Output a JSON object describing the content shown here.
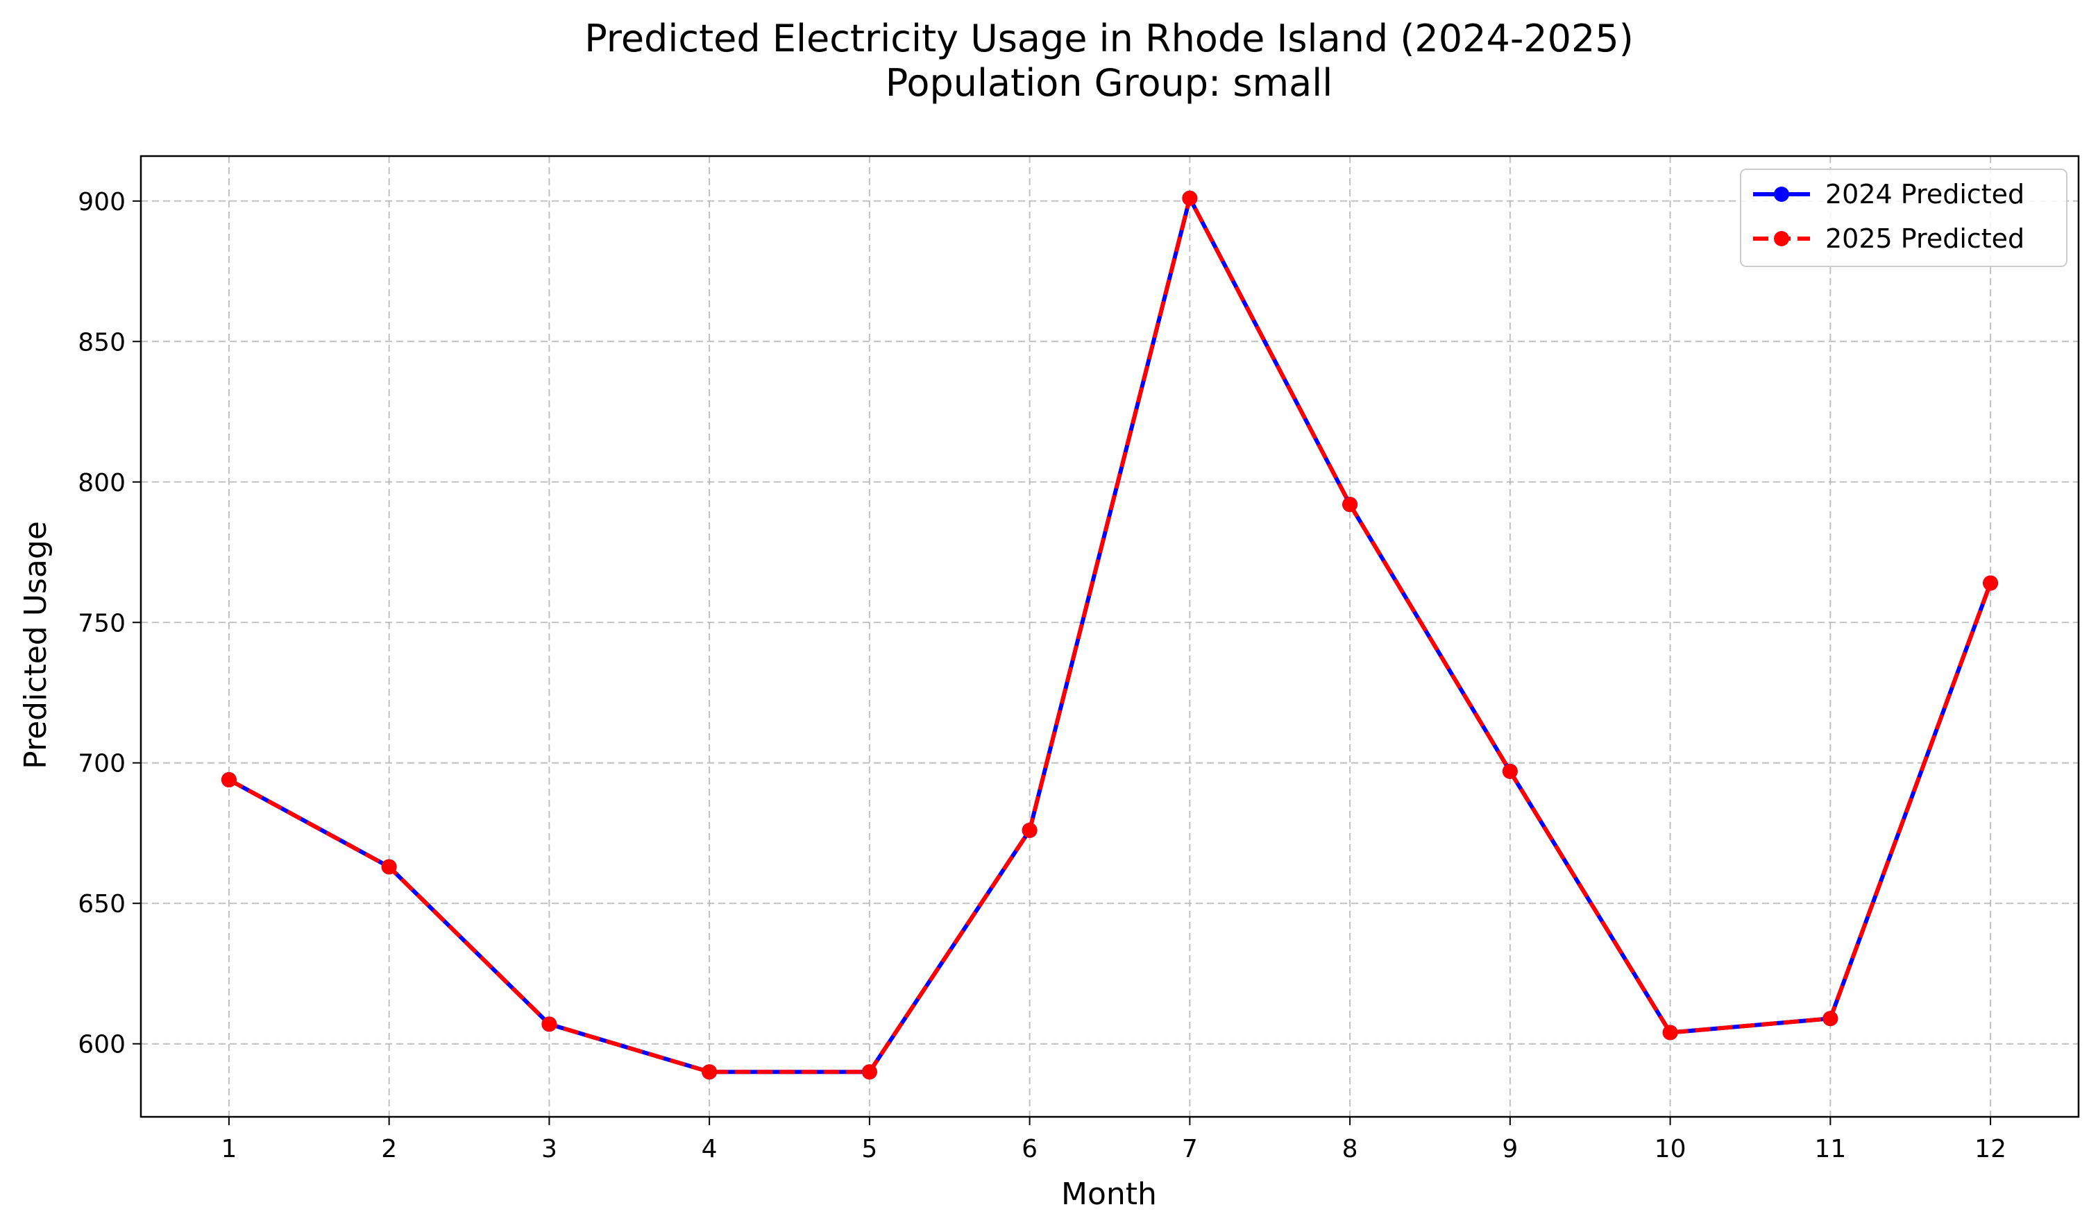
{
  "chart_data": {
    "type": "line",
    "title": "Predicted Electricity Usage in Rhode Island (2024-2025)",
    "subtitle": "Population Group: small",
    "xlabel": "Month",
    "ylabel": "Predicted Usage",
    "x": [
      1,
      2,
      3,
      4,
      5,
      6,
      7,
      8,
      9,
      10,
      11,
      12
    ],
    "xlim": [
      0.45,
      12.55
    ],
    "ylim": [
      574,
      916
    ],
    "yticks": [
      600,
      650,
      700,
      750,
      800,
      850,
      900
    ],
    "grid": true,
    "legend_position": "top-right",
    "series": [
      {
        "name": "2024 Predicted",
        "color": "#0000ff",
        "line_style": "solid",
        "marker": "circle",
        "values": [
          694,
          663,
          607,
          590,
          590,
          676,
          901,
          792,
          697,
          604,
          609,
          764
        ]
      },
      {
        "name": "2025 Predicted",
        "color": "#ff0000",
        "line_style": "dashed",
        "marker": "circle",
        "values": [
          694,
          663,
          607,
          590,
          590,
          676,
          901,
          792,
          697,
          604,
          609,
          764
        ]
      }
    ]
  }
}
